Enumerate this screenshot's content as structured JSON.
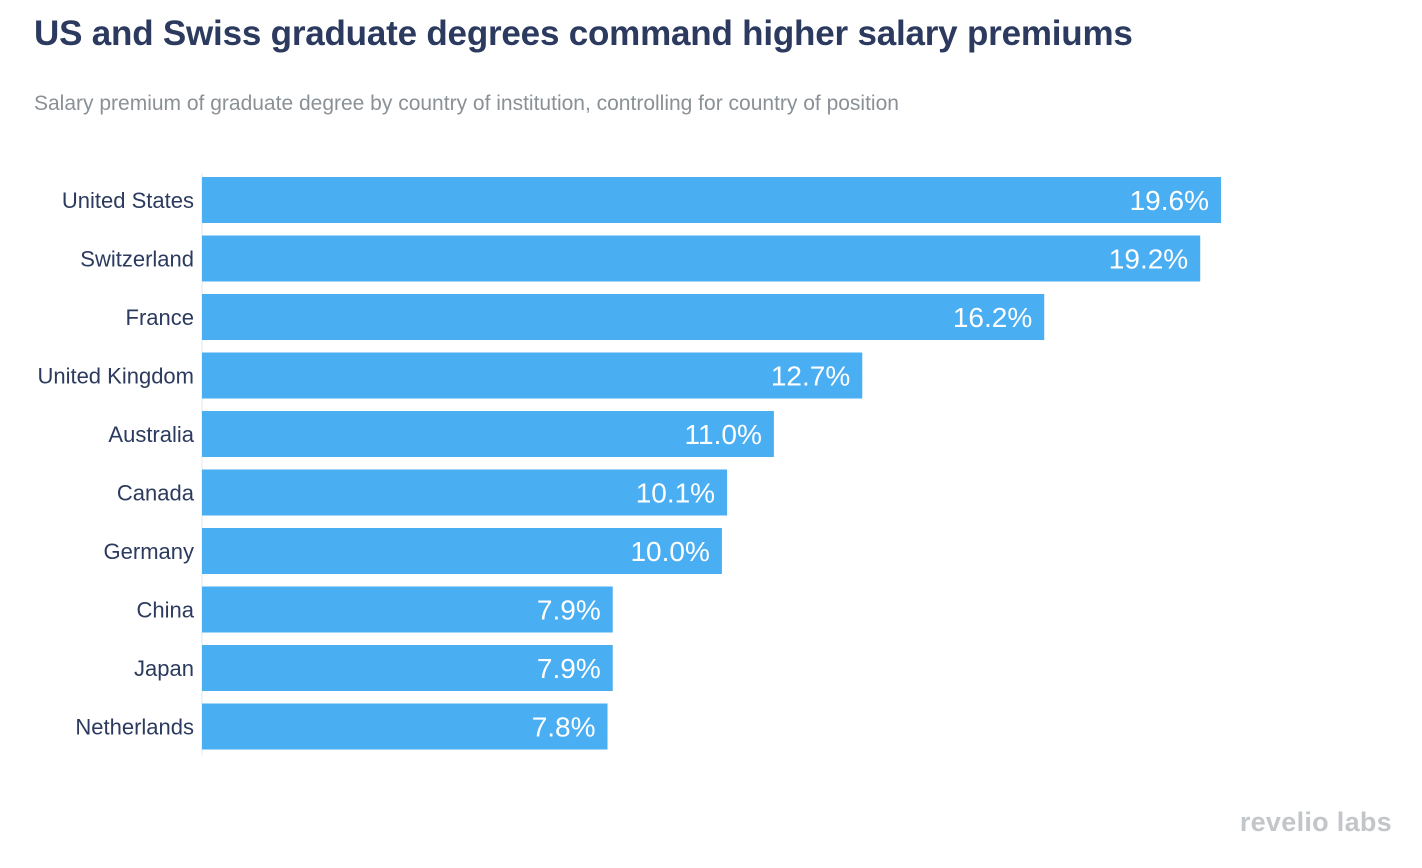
{
  "header": {
    "title": "US and Swiss graduate degrees command higher salary premiums",
    "subtitle": "Salary premium of graduate degree by country of institution, controlling for country of position"
  },
  "branding": {
    "logo_text": "revelio labs"
  },
  "colors": {
    "bar": "#4aaef3",
    "axis_label": "#2b3a5e",
    "value_label": "#ffffff",
    "title": "#2b3a5e",
    "subtitle": "#8a9196"
  },
  "chart_data": {
    "type": "bar",
    "orientation": "horizontal",
    "title": "US and Swiss graduate degrees command higher salary premiums",
    "subtitle": "Salary premium of graduate degree by country of institution, controlling for country of position",
    "categories": [
      "United States",
      "Switzerland",
      "France",
      "United Kingdom",
      "Australia",
      "Canada",
      "Germany",
      "China",
      "Japan",
      "Netherlands"
    ],
    "values": [
      19.6,
      19.2,
      16.2,
      12.7,
      11.0,
      10.1,
      10.0,
      7.9,
      7.9,
      7.8
    ],
    "value_labels": [
      "19.6%",
      "19.2%",
      "16.2%",
      "12.7%",
      "11.0%",
      "10.1%",
      "10.0%",
      "7.9%",
      "7.9%",
      "7.8%"
    ],
    "unit": "%",
    "xlim": [
      0,
      19.6
    ],
    "grid": false,
    "legend": "none"
  }
}
